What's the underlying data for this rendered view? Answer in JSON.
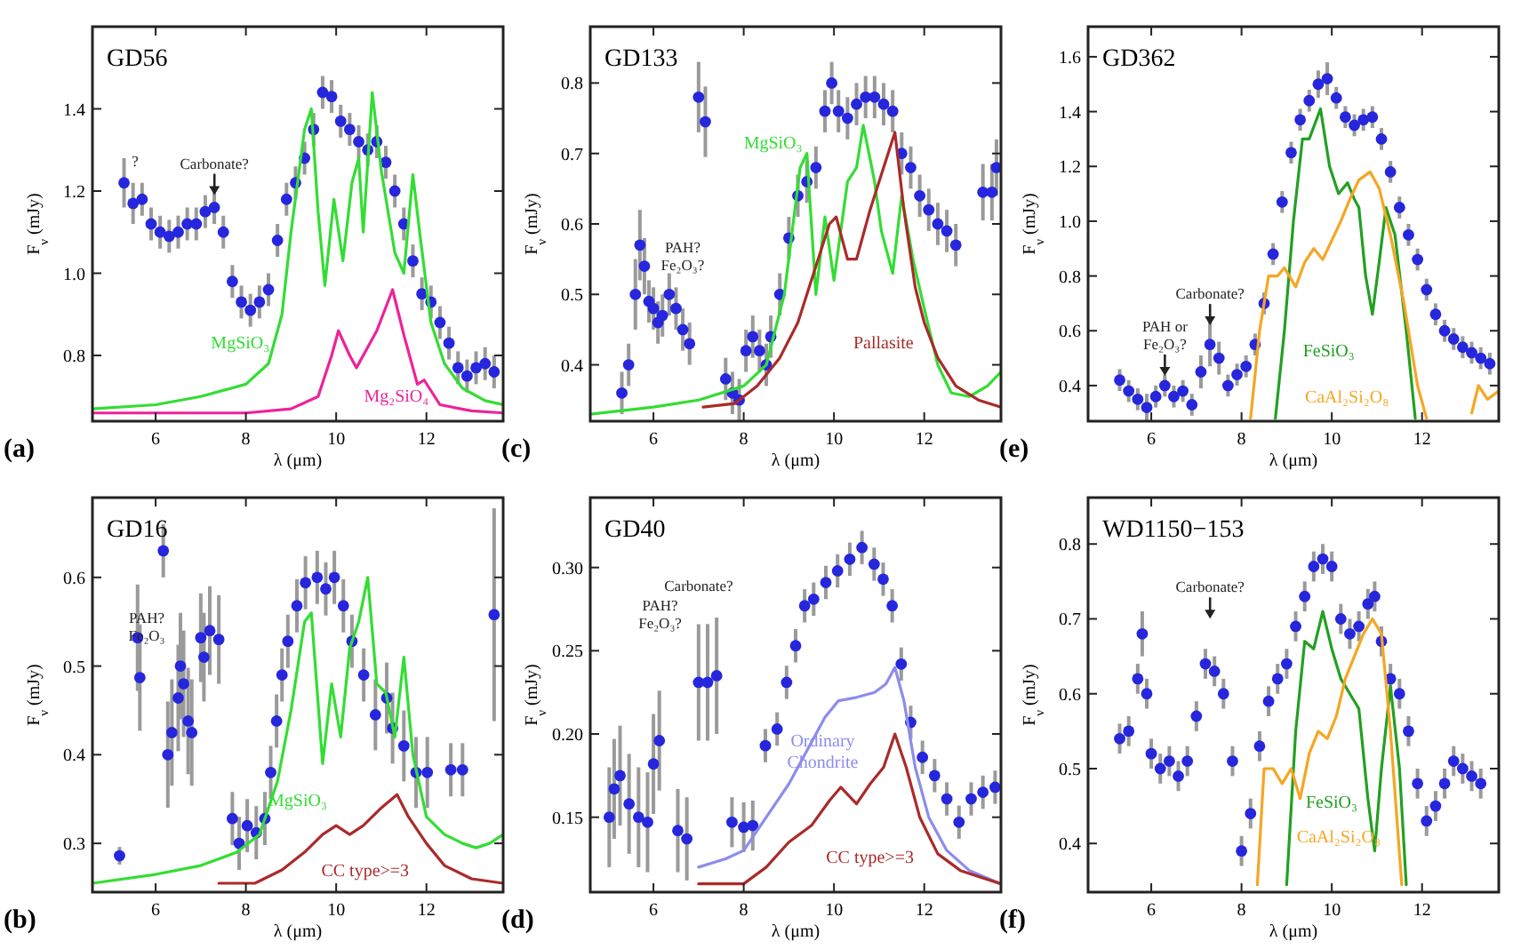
{
  "chart_data": [
    {
      "type": "scatter",
      "title": "GD56",
      "xlabel": "λ (μm)",
      "ylabel": "F$_{ν}$ (mJy)",
      "xlim": [
        4.6,
        13.7
      ],
      "ylim": [
        0.64,
        1.6
      ],
      "xticks": [
        6,
        8,
        10,
        12
      ],
      "yticks": [
        0.8,
        {
          "value": 1,
          "label": "1.0"
        },
        1.2,
        1.4
      ],
      "annotations": [
        "?",
        "Carbonate?",
        "(a)"
      ],
      "series": [
        {
          "marker": "circle",
          "color": "#2626dd",
          "x": [
            5.3,
            5.5,
            5.7,
            5.9,
            6.1,
            6.3,
            6.5,
            6.7,
            6.9,
            7.1,
            7.3,
            7.5,
            7.7,
            7.9,
            8.1,
            8.3,
            8.5,
            8.7,
            8.9,
            9.1,
            9.3,
            9.5,
            9.7,
            9.9,
            10.1,
            10.3,
            10.5,
            10.7,
            10.9,
            11.1,
            11.3,
            11.5,
            11.7,
            11.9,
            12.1,
            12.3,
            12.5,
            12.7,
            12.9,
            13.1,
            13.3,
            13.5
          ],
          "values": [
            1.22,
            1.17,
            1.18,
            1.12,
            1.1,
            1.09,
            1.1,
            1.12,
            1.12,
            1.15,
            1.16,
            1.1,
            0.98,
            0.93,
            0.91,
            0.93,
            0.96,
            1.08,
            1.18,
            1.22,
            1.28,
            1.35,
            1.44,
            1.43,
            1.37,
            1.35,
            1.32,
            1.3,
            1.32,
            1.27,
            1.2,
            1.12,
            1.03,
            0.95,
            0.93,
            0.88,
            0.83,
            0.77,
            0.75,
            0.77,
            0.78,
            0.76
          ],
          "errors": [
            0.06,
            0.05,
            0.04,
            0.04,
            0.04,
            0.04,
            0.04,
            0.04,
            0.04,
            0.04,
            0.04,
            0.04,
            0.04,
            0.04,
            0.04,
            0.04,
            0.04,
            0.04,
            0.04,
            0.04,
            0.04,
            0.04,
            0.04,
            0.04,
            0.04,
            0.04,
            0.04,
            0.04,
            0.04,
            0.04,
            0.04,
            0.04,
            0.04,
            0.04,
            0.04,
            0.04,
            0.04,
            0.04,
            0.04,
            0.04,
            0.04,
            0.04
          ]
        },
        {
          "type": "line",
          "name": "MgSiO₃",
          "color": "#33dd33",
          "x": [
            4.6,
            6,
            7,
            8,
            8.5,
            8.8,
            9.0,
            9.3,
            9.45,
            9.6,
            9.75,
            9.95,
            10.15,
            10.35,
            10.5,
            10.6,
            10.8,
            11.0,
            11.3,
            11.5,
            11.7,
            11.85,
            12.1,
            12.4,
            12.8,
            13.3,
            13.7
          ],
          "values": [
            0.67,
            0.68,
            0.7,
            0.73,
            0.78,
            0.9,
            1.1,
            1.35,
            1.4,
            1.15,
            0.97,
            1.18,
            1.03,
            1.22,
            1.28,
            1.1,
            1.44,
            1.25,
            1.05,
            1.0,
            1.24,
            1.1,
            0.88,
            0.78,
            0.72,
            0.69,
            0.68
          ]
        },
        {
          "type": "line",
          "name": "Mg₂SiO₄",
          "color": "#ee2299",
          "x": [
            4.6,
            8,
            9,
            9.6,
            9.9,
            10.05,
            10.3,
            10.45,
            10.7,
            10.9,
            11.25,
            11.5,
            11.8,
            11.95,
            12.3,
            13,
            13.7
          ],
          "values": [
            0.66,
            0.66,
            0.67,
            0.7,
            0.8,
            0.86,
            0.8,
            0.77,
            0.82,
            0.86,
            0.96,
            0.85,
            0.73,
            0.74,
            0.68,
            0.665,
            0.66
          ]
        }
      ]
    },
    {
      "type": "scatter",
      "title": "GD133",
      "xlabel": "λ (μm)",
      "ylabel": "F$_{ν}$ (mJy)",
      "xlim": [
        4.6,
        13.7
      ],
      "ylim": [
        0.32,
        0.88
      ],
      "xticks": [
        6,
        8,
        10,
        12
      ],
      "yticks": [
        0.4,
        0.5,
        0.6,
        0.7,
        0.8
      ],
      "annotations": [
        "PAH?\nFe₂O₃?",
        "(c)"
      ],
      "series": [
        {
          "marker": "circle",
          "color": "#2626dd",
          "x": [
            5.3,
            5.45,
            5.6,
            5.7,
            5.8,
            5.9,
            6.0,
            6.1,
            6.2,
            6.35,
            6.5,
            6.65,
            6.8,
            7.0,
            7.15,
            7.6,
            7.75,
            7.9,
            8.05,
            8.2,
            8.35,
            8.5,
            8.6,
            8.8,
            9.0,
            9.2,
            9.4,
            9.6,
            9.8,
            9.95,
            10.1,
            10.3,
            10.5,
            10.7,
            10.9,
            11.1,
            11.3,
            11.5,
            11.7,
            11.9,
            12.1,
            12.3,
            12.5,
            12.7,
            13.3,
            13.5,
            13.6
          ],
          "values": [
            0.36,
            0.4,
            0.5,
            0.57,
            0.54,
            0.49,
            0.48,
            0.46,
            0.47,
            0.5,
            0.48,
            0.45,
            0.43,
            0.78,
            0.745,
            0.38,
            0.36,
            0.35,
            0.42,
            0.44,
            0.42,
            0.4,
            0.44,
            0.5,
            0.58,
            0.64,
            0.66,
            0.68,
            0.76,
            0.8,
            0.76,
            0.75,
            0.77,
            0.78,
            0.78,
            0.77,
            0.76,
            0.7,
            0.68,
            0.64,
            0.62,
            0.6,
            0.59,
            0.57,
            0.645,
            0.645,
            0.68
          ],
          "errors": [
            0.03,
            0.03,
            0.05,
            0.05,
            0.04,
            0.03,
            0.03,
            0.03,
            0.03,
            0.03,
            0.03,
            0.03,
            0.03,
            0.05,
            0.05,
            0.03,
            0.03,
            0.03,
            0.03,
            0.03,
            0.03,
            0.03,
            0.03,
            0.03,
            0.03,
            0.03,
            0.03,
            0.03,
            0.03,
            0.03,
            0.03,
            0.03,
            0.03,
            0.03,
            0.03,
            0.03,
            0.03,
            0.03,
            0.03,
            0.03,
            0.03,
            0.03,
            0.03,
            0.03,
            0.04,
            0.04,
            0.04
          ]
        },
        {
          "type": "line",
          "name": "MgSiO₃",
          "color": "#33dd33",
          "x": [
            4.6,
            6,
            7,
            8,
            8.5,
            8.9,
            9.25,
            9.4,
            9.6,
            9.8,
            10.0,
            10.3,
            10.5,
            10.65,
            10.9,
            11.05,
            11.3,
            11.5,
            11.75,
            12.0,
            12.3,
            12.6,
            13.0,
            13.4,
            13.7
          ],
          "values": [
            0.33,
            0.34,
            0.35,
            0.37,
            0.4,
            0.5,
            0.68,
            0.7,
            0.5,
            0.61,
            0.52,
            0.66,
            0.68,
            0.74,
            0.66,
            0.59,
            0.53,
            0.64,
            0.55,
            0.48,
            0.4,
            0.36,
            0.355,
            0.37,
            0.39
          ]
        },
        {
          "type": "line",
          "name": "Pallasite",
          "color": "#aa2a2a",
          "x": [
            7.1,
            7.8,
            8.3,
            8.8,
            9.2,
            9.6,
            9.9,
            10.05,
            10.3,
            10.5,
            10.8,
            11.1,
            11.35,
            11.55,
            11.8,
            12.0,
            12.3,
            12.7,
            13.2,
            13.7
          ],
          "values": [
            0.34,
            0.345,
            0.37,
            0.41,
            0.46,
            0.54,
            0.6,
            0.61,
            0.55,
            0.55,
            0.62,
            0.68,
            0.73,
            0.62,
            0.51,
            0.46,
            0.41,
            0.37,
            0.35,
            0.34
          ]
        }
      ]
    },
    {
      "type": "scatter",
      "title": "GD362",
      "xlabel": "λ (μm)",
      "ylabel": "F$_{ν}$ (mJy)",
      "xlim": [
        4.6,
        13.7
      ],
      "ylim": [
        0.27,
        1.71
      ],
      "xticks": [
        6,
        8,
        10,
        12
      ],
      "yticks": [
        0.4,
        0.6,
        0.8,
        {
          "value": 1,
          "label": "1.0"
        },
        1.2,
        1.4,
        1.6
      ],
      "annotations": [
        "PAH or\nFe₂O₃?",
        "Carbonate?",
        "(e)"
      ],
      "series": [
        {
          "marker": "circle",
          "color": "#2626dd",
          "x": [
            5.3,
            5.5,
            5.7,
            5.9,
            6.1,
            6.3,
            6.5,
            6.7,
            6.9,
            7.1,
            7.3,
            7.5,
            7.7,
            7.9,
            8.1,
            8.3,
            8.5,
            8.7,
            8.9,
            9.1,
            9.3,
            9.5,
            9.7,
            9.9,
            10.1,
            10.3,
            10.5,
            10.7,
            10.9,
            11.1,
            11.3,
            11.5,
            11.7,
            11.9,
            12.1,
            12.3,
            12.5,
            12.7,
            12.9,
            13.1,
            13.3,
            13.5
          ],
          "values": [
            0.42,
            0.38,
            0.35,
            0.32,
            0.36,
            0.4,
            0.36,
            0.38,
            0.33,
            0.45,
            0.55,
            0.5,
            0.4,
            0.44,
            0.47,
            0.55,
            0.7,
            0.88,
            1.07,
            1.25,
            1.37,
            1.44,
            1.5,
            1.52,
            1.45,
            1.38,
            1.35,
            1.37,
            1.38,
            1.3,
            1.18,
            1.05,
            0.95,
            0.86,
            0.75,
            0.66,
            0.6,
            0.57,
            0.54,
            0.52,
            0.5,
            0.48
          ],
          "errors": [
            0.04,
            0.04,
            0.04,
            0.05,
            0.04,
            0.04,
            0.04,
            0.04,
            0.04,
            0.06,
            0.08,
            0.06,
            0.04,
            0.04,
            0.04,
            0.04,
            0.04,
            0.04,
            0.04,
            0.04,
            0.04,
            0.04,
            0.05,
            0.06,
            0.04,
            0.04,
            0.04,
            0.04,
            0.04,
            0.04,
            0.04,
            0.04,
            0.04,
            0.04,
            0.04,
            0.04,
            0.04,
            0.04,
            0.04,
            0.04,
            0.04,
            0.04
          ]
        },
        {
          "type": "line",
          "name": "FeSiO₃",
          "color": "#22a022",
          "x": [
            8.75,
            8.95,
            9.15,
            9.35,
            9.5,
            9.75,
            9.95,
            10.15,
            10.35,
            10.5,
            10.6,
            10.75,
            10.9,
            11.05,
            11.2,
            11.4,
            11.65,
            11.85
          ],
          "values": [
            0.28,
            0.6,
            1.0,
            1.3,
            1.3,
            1.41,
            1.2,
            1.1,
            1.14,
            1.08,
            1.05,
            0.8,
            0.66,
            0.85,
            1.05,
            0.95,
            0.6,
            0.28
          ]
        },
        {
          "type": "line",
          "name": "CaAl₂Si₂O₈",
          "color": "#f5a623",
          "x": [
            8.2,
            8.4,
            8.6,
            8.8,
            8.95,
            9.2,
            9.4,
            9.6,
            9.8,
            10.0,
            10.2,
            10.4,
            10.6,
            10.85,
            11.05,
            11.3,
            11.6,
            11.9,
            12.1
          ],
          "values": [
            0.28,
            0.6,
            0.8,
            0.8,
            0.83,
            0.76,
            0.85,
            0.9,
            0.86,
            0.93,
            1.0,
            1.08,
            1.15,
            1.18,
            1.12,
            0.95,
            0.7,
            0.4,
            0.28
          ]
        },
        {
          "type": "line",
          "color": "#f5a623",
          "x": [
            13.1,
            13.25,
            13.45,
            13.7
          ],
          "values": [
            0.3,
            0.4,
            0.35,
            0.38
          ]
        }
      ]
    },
    {
      "type": "scatter",
      "title": "GD16",
      "xlabel": "λ (μm)",
      "ylabel": "F$_{ν}$ (mJy)",
      "xlim": [
        4.6,
        13.7
      ],
      "ylim": [
        0.245,
        0.69
      ],
      "xticks": [
        6,
        8,
        10,
        12
      ],
      "yticks": [
        0.3,
        0.4,
        0.5,
        0.6
      ],
      "annotations": [
        "PAH?\nFe₂O₃",
        "(b)"
      ],
      "series": [
        {
          "marker": "circle",
          "color": "#2626dd",
          "x": [
            5.2,
            5.6,
            5.65,
            6.17,
            6.27,
            6.36,
            6.5,
            6.55,
            6.62,
            6.72,
            6.8,
            7.0,
            7.07,
            7.2,
            7.4,
            7.7,
            7.85,
            8.03,
            8.23,
            8.42,
            8.55,
            8.68,
            8.8,
            8.93,
            9.13,
            9.32,
            9.58,
            9.77,
            9.96,
            10.16,
            10.35,
            10.61,
            10.87,
            11.12,
            11.25,
            11.5,
            11.77,
            12.02,
            12.54,
            12.8,
            13.5
          ],
          "values": [
            0.286,
            0.532,
            0.487,
            0.63,
            0.4,
            0.425,
            0.464,
            0.5,
            0.48,
            0.438,
            0.425,
            0.532,
            0.51,
            0.54,
            0.53,
            0.328,
            0.3,
            0.32,
            0.312,
            0.328,
            0.38,
            0.438,
            0.49,
            0.528,
            0.568,
            0.594,
            0.6,
            0.587,
            0.6,
            0.568,
            0.528,
            0.49,
            0.445,
            0.464,
            0.43,
            0.41,
            0.38,
            0.38,
            0.383,
            0.383,
            0.558
          ],
          "errors": [
            0.01,
            0.06,
            0.06,
            0.03,
            0.06,
            0.06,
            0.06,
            0.06,
            0.06,
            0.06,
            0.06,
            0.05,
            0.05,
            0.05,
            0.05,
            0.03,
            0.03,
            0.03,
            0.03,
            0.03,
            0.03,
            0.03,
            0.03,
            0.03,
            0.03,
            0.03,
            0.03,
            0.03,
            0.03,
            0.03,
            0.03,
            0.03,
            0.04,
            0.04,
            0.04,
            0.04,
            0.04,
            0.04,
            0.03,
            0.03,
            0.12
          ]
        },
        {
          "type": "line",
          "name": "MgSiO₃",
          "color": "#33dd33",
          "x": [
            4.6,
            6.0,
            7.0,
            7.8,
            8.3,
            8.7,
            9.0,
            9.3,
            9.45,
            9.7,
            9.9,
            10.1,
            10.3,
            10.5,
            10.7,
            10.9,
            11.1,
            11.3,
            11.5,
            11.7,
            12.0,
            12.4,
            12.8,
            13.1,
            13.4,
            13.7
          ],
          "values": [
            0.255,
            0.265,
            0.275,
            0.29,
            0.31,
            0.37,
            0.45,
            0.55,
            0.56,
            0.39,
            0.48,
            0.42,
            0.52,
            0.55,
            0.6,
            0.48,
            0.47,
            0.42,
            0.51,
            0.4,
            0.33,
            0.31,
            0.3,
            0.295,
            0.3,
            0.31
          ]
        },
        {
          "type": "line",
          "name": "CC type>=3",
          "color": "#aa2a2a",
          "x": [
            7.4,
            8.2,
            8.8,
            9.3,
            9.7,
            10.0,
            10.3,
            10.6,
            11.0,
            11.35,
            11.6,
            12.0,
            12.4,
            13.0,
            13.7
          ],
          "values": [
            0.255,
            0.255,
            0.27,
            0.29,
            0.31,
            0.32,
            0.31,
            0.32,
            0.34,
            0.355,
            0.33,
            0.3,
            0.275,
            0.26,
            0.255
          ]
        }
      ]
    },
    {
      "type": "scatter",
      "title": "GD40",
      "xlabel": "λ (μm)",
      "ylabel": "F$_{ν}$ (mJy)",
      "xlim": [
        4.6,
        13.7
      ],
      "ylim": [
        0.105,
        0.342
      ],
      "xticks": [
        6,
        8,
        10,
        12
      ],
      "yticks": [
        0.15,
        {
          "value": 0.2,
          "label": "0.20"
        },
        0.25,
        {
          "value": 0.3,
          "label": "0.30"
        }
      ],
      "annotations": [
        "PAH?\nFe₂O₃?",
        "Carbonate?",
        "(d)"
      ],
      "series": [
        {
          "marker": "circle",
          "color": "#2626dd",
          "x": [
            5.02,
            5.13,
            5.26,
            5.46,
            5.67,
            5.87,
            6.0,
            6.13,
            6.54,
            6.74,
            7.0,
            7.2,
            7.4,
            7.74,
            8.0,
            8.2,
            8.48,
            8.74,
            8.95,
            9.15,
            9.35,
            9.55,
            9.82,
            10.08,
            10.35,
            10.62,
            10.89,
            11.09,
            11.29,
            11.49,
            11.7,
            11.96,
            12.23,
            12.5,
            12.77,
            13.04,
            13.3,
            13.57
          ],
          "values": [
            0.15,
            0.167,
            0.175,
            0.158,
            0.15,
            0.147,
            0.182,
            0.196,
            0.142,
            0.137,
            0.231,
            0.231,
            0.235,
            0.147,
            0.144,
            0.145,
            0.193,
            0.203,
            0.231,
            0.253,
            0.277,
            0.281,
            0.291,
            0.298,
            0.305,
            0.312,
            0.302,
            0.293,
            0.277,
            0.242,
            0.207,
            0.186,
            0.175,
            0.161,
            0.147,
            0.161,
            0.165,
            0.168
          ],
          "errors": [
            0.03,
            0.03,
            0.03,
            0.03,
            0.03,
            0.03,
            0.03,
            0.03,
            0.025,
            0.025,
            0.035,
            0.035,
            0.035,
            0.015,
            0.015,
            0.015,
            0.01,
            0.01,
            0.01,
            0.01,
            0.01,
            0.01,
            0.01,
            0.01,
            0.01,
            0.01,
            0.01,
            0.01,
            0.01,
            0.01,
            0.01,
            0.01,
            0.01,
            0.01,
            0.01,
            0.01,
            0.01,
            0.01
          ]
        },
        {
          "type": "line",
          "name": "Ordinary\nChondrite",
          "color": "#8c8cee",
          "x": [
            7.0,
            7.6,
            8.0,
            8.5,
            9.0,
            9.5,
            9.8,
            10.1,
            10.5,
            10.9,
            11.15,
            11.35,
            11.55,
            11.8,
            12.1,
            12.5,
            13.0,
            13.7
          ],
          "values": [
            0.12,
            0.125,
            0.13,
            0.15,
            0.17,
            0.195,
            0.21,
            0.22,
            0.222,
            0.225,
            0.23,
            0.24,
            0.22,
            0.18,
            0.15,
            0.13,
            0.118,
            0.11
          ]
        },
        {
          "type": "line",
          "name": "CC type>=3",
          "color": "#aa2a2a",
          "x": [
            7.0,
            8.0,
            8.5,
            9.0,
            9.5,
            9.9,
            10.15,
            10.5,
            10.8,
            11.1,
            11.35,
            11.6,
            11.9,
            12.3,
            12.8,
            13.7
          ],
          "values": [
            0.11,
            0.11,
            0.12,
            0.135,
            0.145,
            0.16,
            0.168,
            0.158,
            0.17,
            0.18,
            0.2,
            0.18,
            0.15,
            0.128,
            0.118,
            0.11
          ]
        }
      ]
    },
    {
      "type": "scatter",
      "title": "WD1150−153",
      "xlabel": "λ (μm)",
      "ylabel": "F$_{ν}$ (mJy)",
      "xlim": [
        4.6,
        13.7
      ],
      "ylim": [
        0.335,
        0.862
      ],
      "xticks": [
        6,
        8,
        10,
        12
      ],
      "yticks": [
        0.4,
        0.5,
        0.6,
        0.7,
        0.8
      ],
      "annotations": [
        "Carbonate?",
        "(f)"
      ],
      "series": [
        {
          "marker": "circle",
          "color": "#2626dd",
          "x": [
            5.3,
            5.5,
            5.7,
            5.8,
            5.9,
            6.0,
            6.2,
            6.4,
            6.6,
            6.8,
            7.0,
            7.2,
            7.4,
            7.6,
            7.8,
            8.0,
            8.2,
            8.4,
            8.6,
            8.8,
            9.0,
            9.2,
            9.4,
            9.6,
            9.8,
            10.0,
            10.2,
            10.4,
            10.6,
            10.8,
            10.95,
            11.1,
            11.3,
            11.5,
            11.7,
            11.9,
            12.1,
            12.3,
            12.5,
            12.7,
            12.9,
            13.1,
            13.3
          ],
          "values": [
            0.54,
            0.55,
            0.62,
            0.68,
            0.6,
            0.52,
            0.5,
            0.51,
            0.49,
            0.51,
            0.57,
            0.64,
            0.63,
            0.6,
            0.51,
            0.39,
            0.44,
            0.53,
            0.59,
            0.62,
            0.64,
            0.69,
            0.73,
            0.77,
            0.78,
            0.77,
            0.7,
            0.68,
            0.69,
            0.72,
            0.73,
            0.67,
            0.62,
            0.6,
            0.55,
            0.48,
            0.43,
            0.45,
            0.48,
            0.51,
            0.5,
            0.49,
            0.48
          ],
          "errors": [
            0.02,
            0.02,
            0.02,
            0.03,
            0.02,
            0.02,
            0.02,
            0.02,
            0.02,
            0.02,
            0.02,
            0.02,
            0.02,
            0.02,
            0.02,
            0.02,
            0.02,
            0.02,
            0.02,
            0.02,
            0.02,
            0.02,
            0.02,
            0.02,
            0.02,
            0.02,
            0.02,
            0.02,
            0.02,
            0.02,
            0.02,
            0.02,
            0.02,
            0.02,
            0.02,
            0.02,
            0.02,
            0.02,
            0.02,
            0.02,
            0.02,
            0.02,
            0.02
          ]
        },
        {
          "type": "line",
          "name": "FeSiO₃",
          "color": "#22a022",
          "x": [
            9.0,
            9.2,
            9.4,
            9.6,
            9.8,
            10.0,
            10.2,
            10.4,
            10.6,
            10.8,
            10.95,
            11.1,
            11.3,
            11.5,
            11.65
          ],
          "values": [
            0.345,
            0.55,
            0.67,
            0.66,
            0.71,
            0.66,
            0.62,
            0.6,
            0.58,
            0.46,
            0.39,
            0.5,
            0.61,
            0.5,
            0.345
          ]
        },
        {
          "type": "line",
          "name": "CaAl₂Si₂O₈",
          "color": "#f5a623",
          "x": [
            8.35,
            8.5,
            8.7,
            8.9,
            9.1,
            9.3,
            9.5,
            9.7,
            9.9,
            10.1,
            10.3,
            10.5,
            10.7,
            10.9,
            11.1,
            11.3,
            11.55
          ],
          "values": [
            0.345,
            0.5,
            0.5,
            0.48,
            0.5,
            0.46,
            0.52,
            0.55,
            0.54,
            0.57,
            0.62,
            0.65,
            0.68,
            0.7,
            0.68,
            0.55,
            0.345
          ]
        }
      ]
    }
  ]
}
